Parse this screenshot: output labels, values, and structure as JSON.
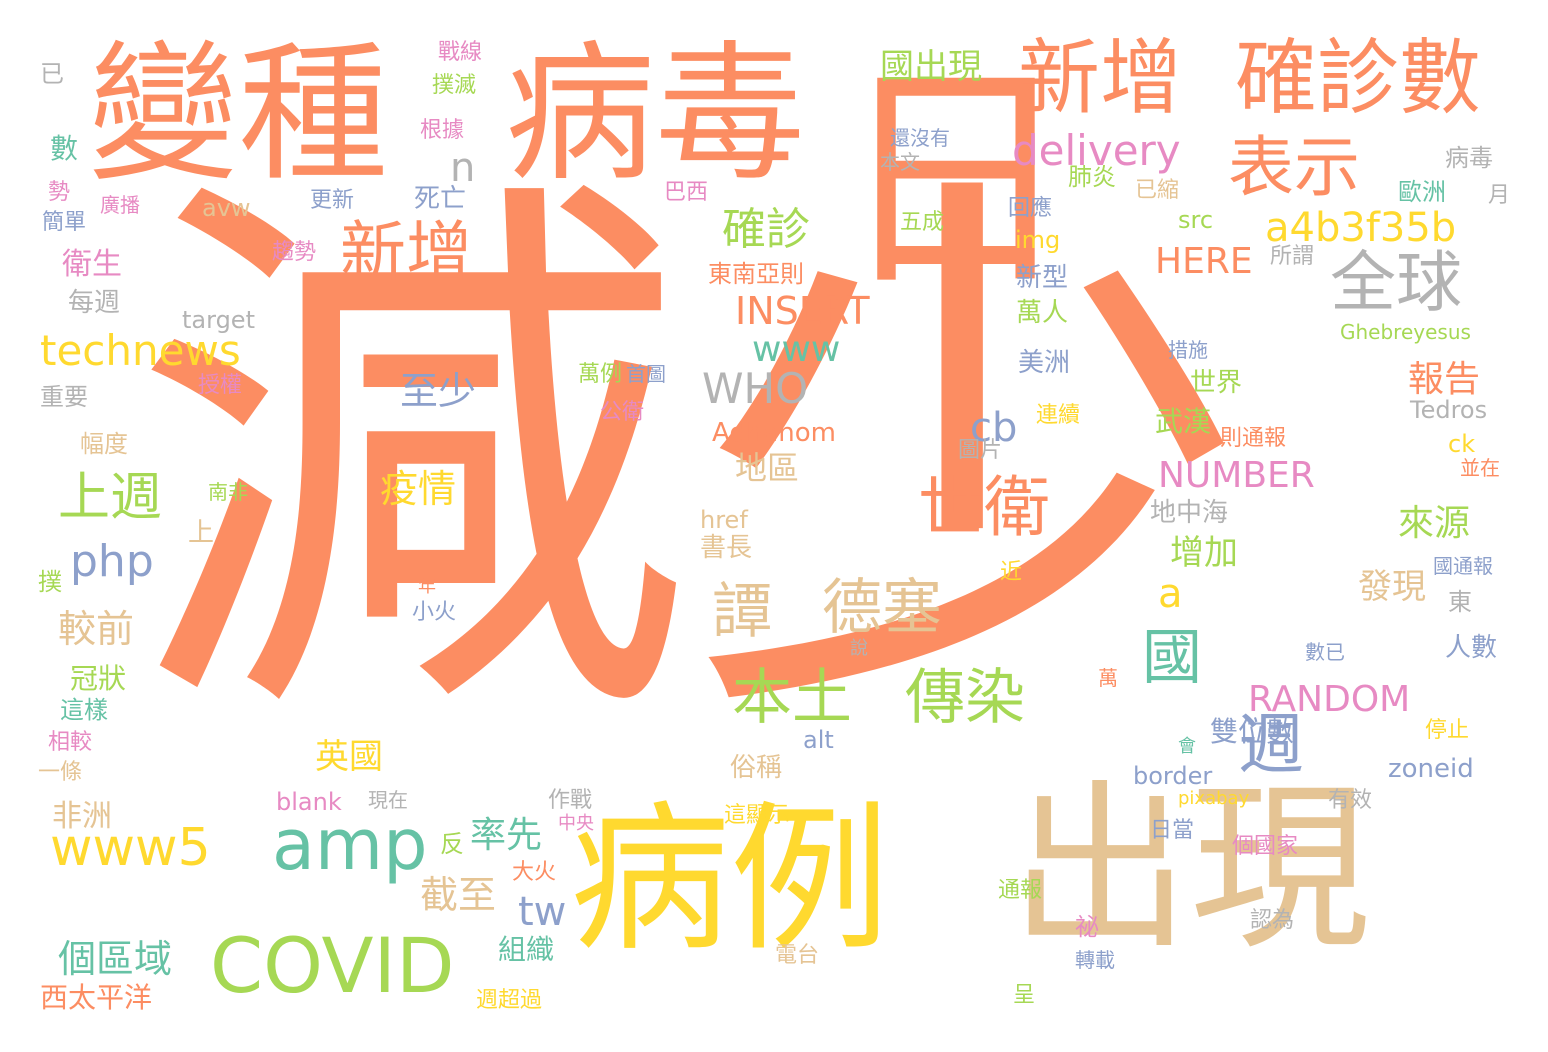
{
  "palette": {
    "orange": "#fc8d62",
    "yellow": "#ffd92f",
    "tan": "#e5c494",
    "green": "#a6d854",
    "teal": "#66c2a5",
    "blue": "#8da0cb",
    "pink": "#e78ac3",
    "grey": "#b3b3b3"
  },
  "words": [
    {
      "text": "減少",
      "color": "orange"
    },
    {
      "text": "病毒",
      "color": "orange"
    },
    {
      "text": "變種",
      "color": "orange"
    },
    {
      "text": "日",
      "color": "orange"
    },
    {
      "text": "病例",
      "color": "yellow"
    },
    {
      "text": "出現",
      "color": "tan"
    },
    {
      "text": "新增",
      "color": "orange"
    },
    {
      "text": "確診數",
      "color": "orange"
    },
    {
      "text": "表示",
      "color": "orange"
    },
    {
      "text": "新增",
      "color": "orange"
    },
    {
      "text": "全球",
      "color": "grey"
    },
    {
      "text": "世衛",
      "color": "orange"
    },
    {
      "text": "譚",
      "color": "tan"
    },
    {
      "text": "德塞",
      "color": "tan"
    },
    {
      "text": "本土",
      "color": "green"
    },
    {
      "text": "傳染",
      "color": "green"
    },
    {
      "text": "國",
      "color": "teal"
    },
    {
      "text": "週",
      "color": "blue"
    },
    {
      "text": "COVID",
      "color": "green"
    },
    {
      "text": "amp",
      "color": "teal"
    },
    {
      "text": "www5",
      "color": "yellow"
    },
    {
      "text": "technews",
      "color": "yellow"
    },
    {
      "text": "上週",
      "color": "green"
    },
    {
      "text": "php",
      "color": "blue"
    },
    {
      "text": "delivery",
      "color": "pink"
    },
    {
      "text": "a4b3f35b",
      "color": "yellow"
    },
    {
      "text": "WHO",
      "color": "grey"
    },
    {
      "text": "確診",
      "color": "green"
    },
    {
      "text": "www",
      "color": "teal"
    },
    {
      "text": "INSERT",
      "color": "orange"
    },
    {
      "text": "RANDOM",
      "color": "pink"
    },
    {
      "text": "NUMBER",
      "color": "pink"
    },
    {
      "text": "HERE",
      "color": "orange"
    },
    {
      "text": "國出現",
      "color": "green"
    },
    {
      "text": "個區域",
      "color": "teal"
    },
    {
      "text": "率先",
      "color": "teal"
    },
    {
      "text": "tw",
      "color": "blue"
    },
    {
      "text": "截至",
      "color": "tan"
    },
    {
      "text": "英國",
      "color": "yellow"
    },
    {
      "text": "至少",
      "color": "blue"
    },
    {
      "text": "疫情",
      "color": "yellow"
    },
    {
      "text": "cb",
      "color": "blue"
    },
    {
      "text": "a",
      "color": "yellow"
    },
    {
      "text": "n",
      "color": "grey"
    },
    {
      "text": "報告",
      "color": "orange"
    },
    {
      "text": "來源",
      "color": "green"
    },
    {
      "text": "增加",
      "color": "green"
    },
    {
      "text": "發現",
      "color": "tan"
    },
    {
      "text": "雙位數",
      "color": "blue"
    },
    {
      "text": "較前",
      "color": "tan"
    },
    {
      "text": "地區",
      "color": "tan"
    },
    {
      "text": "Adhanom",
      "color": "orange"
    },
    {
      "text": "zoneid",
      "color": "blue"
    },
    {
      "text": "border",
      "color": "blue"
    },
    {
      "text": "Tedros",
      "color": "grey"
    },
    {
      "text": "Ghebreyesus",
      "color": "green"
    },
    {
      "text": "target",
      "color": "grey"
    },
    {
      "text": "avw",
      "color": "tan"
    },
    {
      "text": "src",
      "color": "green"
    },
    {
      "text": "img",
      "color": "yellow"
    },
    {
      "text": "href",
      "color": "tan"
    },
    {
      "text": "alt",
      "color": "blue"
    },
    {
      "text": "blank",
      "color": "pink"
    },
    {
      "text": "ck",
      "color": "yellow"
    },
    {
      "text": "pixabay",
      "color": "yellow"
    },
    {
      "text": "東南亞則",
      "color": "orange"
    },
    {
      "text": "萬例",
      "color": "green"
    },
    {
      "text": "首圖",
      "color": "blue"
    },
    {
      "text": "死亡",
      "color": "blue"
    },
    {
      "text": "更新",
      "color": "blue"
    },
    {
      "text": "肺炎",
      "color": "green"
    },
    {
      "text": "新型",
      "color": "blue"
    },
    {
      "text": "萬人",
      "color": "green"
    },
    {
      "text": "美洲",
      "color": "blue"
    },
    {
      "text": "世界",
      "color": "green"
    },
    {
      "text": "武漢",
      "color": "green"
    },
    {
      "text": "則通報",
      "color": "orange"
    },
    {
      "text": "圖片",
      "color": "grey"
    },
    {
      "text": "地中海",
      "color": "grey"
    },
    {
      "text": "書長",
      "color": "tan"
    },
    {
      "text": "俗稱",
      "color": "tan"
    },
    {
      "text": "非洲",
      "color": "tan"
    },
    {
      "text": "西太平洋",
      "color": "orange"
    },
    {
      "text": "組織",
      "color": "teal"
    },
    {
      "text": "冠狀",
      "color": "green"
    },
    {
      "text": "這樣",
      "color": "teal"
    },
    {
      "text": "相較",
      "color": "pink"
    },
    {
      "text": "一條",
      "color": "tan"
    },
    {
      "text": "每週",
      "color": "grey"
    },
    {
      "text": "衛生",
      "color": "pink"
    },
    {
      "text": "重要",
      "color": "grey"
    },
    {
      "text": "授權",
      "color": "pink"
    },
    {
      "text": "幅度",
      "color": "tan"
    },
    {
      "text": "南非",
      "color": "green"
    },
    {
      "text": "簡單",
      "color": "blue"
    },
    {
      "text": "廣播",
      "color": "pink"
    },
    {
      "text": "趨勢",
      "color": "pink"
    },
    {
      "text": "勢",
      "color": "pink"
    },
    {
      "text": "數",
      "color": "teal"
    },
    {
      "text": "已",
      "color": "grey"
    },
    {
      "text": "撲",
      "color": "green"
    },
    {
      "text": "上",
      "color": "tan"
    },
    {
      "text": "現在",
      "color": "grey"
    },
    {
      "text": "作戰",
      "color": "grey"
    },
    {
      "text": "中央",
      "color": "pink"
    },
    {
      "text": "反",
      "color": "green"
    },
    {
      "text": "大火",
      "color": "orange"
    },
    {
      "text": "小火",
      "color": "blue"
    },
    {
      "text": "年",
      "color": "orange"
    },
    {
      "text": "說",
      "color": "grey"
    },
    {
      "text": "公衛",
      "color": "pink"
    },
    {
      "text": "連續",
      "color": "yellow"
    },
    {
      "text": "五成",
      "color": "green"
    },
    {
      "text": "還沒有",
      "color": "blue"
    },
    {
      "text": "本文",
      "color": "grey"
    },
    {
      "text": "回應",
      "color": "blue"
    },
    {
      "text": "巴西",
      "color": "pink"
    },
    {
      "text": "已縮",
      "color": "tan"
    },
    {
      "text": "歐洲",
      "color": "teal"
    },
    {
      "text": "病毒",
      "color": "grey"
    },
    {
      "text": "月",
      "color": "grey"
    },
    {
      "text": "所謂",
      "color": "grey"
    },
    {
      "text": "措施",
      "color": "blue"
    },
    {
      "text": "並在",
      "color": "orange"
    },
    {
      "text": "東",
      "color": "grey"
    },
    {
      "text": "國通報",
      "color": "blue"
    },
    {
      "text": "人數",
      "color": "blue"
    },
    {
      "text": "數已",
      "color": "blue"
    },
    {
      "text": "萬",
      "color": "orange"
    },
    {
      "text": "近",
      "color": "yellow"
    },
    {
      "text": "停止",
      "color": "yellow"
    },
    {
      "text": "有效",
      "color": "grey"
    },
    {
      "text": "會",
      "color": "teal"
    },
    {
      "text": "日當",
      "color": "blue"
    },
    {
      "text": "個國家",
      "color": "pink"
    },
    {
      "text": "認為",
      "color": "grey"
    },
    {
      "text": "呈",
      "color": "green"
    },
    {
      "text": "祕",
      "color": "pink"
    },
    {
      "text": "轉載",
      "color": "blue"
    },
    {
      "text": "通報",
      "color": "green"
    },
    {
      "text": "電台",
      "color": "tan"
    },
    {
      "text": "週超過",
      "color": "yellow"
    },
    {
      "text": "這顯示",
      "color": "yellow"
    },
    {
      "text": "戰線",
      "color": "pink"
    },
    {
      "text": "撲滅",
      "color": "green"
    },
    {
      "text": "根據",
      "color": "pink"
    }
  ]
}
